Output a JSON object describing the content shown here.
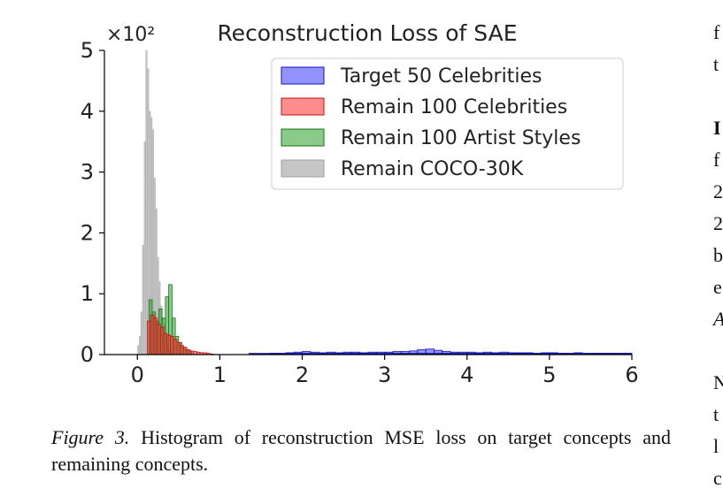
{
  "chart_data": {
    "type": "histogram",
    "title": "Reconstruction Loss of SAE",
    "xlabel": "",
    "ylabel": "",
    "y_multiplier": "×10²",
    "xlim": [
      -0.4,
      6
    ],
    "ylim": [
      0,
      5
    ],
    "x_ticks": [
      "0",
      "1",
      "2",
      "3",
      "4",
      "5",
      "6"
    ],
    "y_ticks": [
      "0",
      "1",
      "2",
      "3",
      "4",
      "5"
    ],
    "legend_position": "top-right",
    "series": [
      {
        "name": "Target 50 Celebrities",
        "color": "#3a3aff",
        "edge": "#1010c0",
        "bins": [
          [
            1.4,
            1.5,
            0.01
          ],
          [
            1.5,
            1.6,
            0.01
          ],
          [
            1.6,
            1.7,
            0.02
          ],
          [
            1.7,
            1.8,
            0.02
          ],
          [
            1.8,
            1.9,
            0.03
          ],
          [
            1.9,
            2.0,
            0.04
          ],
          [
            2.0,
            2.1,
            0.05
          ],
          [
            2.1,
            2.2,
            0.04
          ],
          [
            2.2,
            2.3,
            0.03
          ],
          [
            2.3,
            2.4,
            0.04
          ],
          [
            2.4,
            2.5,
            0.03
          ],
          [
            2.5,
            2.6,
            0.04
          ],
          [
            2.6,
            2.7,
            0.04
          ],
          [
            2.7,
            2.8,
            0.03
          ],
          [
            2.8,
            2.9,
            0.04
          ],
          [
            2.9,
            3.0,
            0.04
          ],
          [
            3.0,
            3.1,
            0.04
          ],
          [
            3.1,
            3.2,
            0.05
          ],
          [
            3.2,
            3.3,
            0.05
          ],
          [
            3.3,
            3.4,
            0.06
          ],
          [
            3.4,
            3.5,
            0.08
          ],
          [
            3.5,
            3.6,
            0.09
          ],
          [
            3.6,
            3.7,
            0.07
          ],
          [
            3.7,
            3.8,
            0.05
          ],
          [
            3.8,
            3.9,
            0.04
          ],
          [
            3.9,
            4.0,
            0.04
          ],
          [
            4.0,
            4.1,
            0.04
          ],
          [
            4.1,
            4.2,
            0.03
          ],
          [
            4.2,
            4.3,
            0.04
          ],
          [
            4.3,
            4.4,
            0.03
          ],
          [
            4.4,
            4.5,
            0.04
          ],
          [
            4.5,
            4.6,
            0.03
          ],
          [
            4.6,
            4.7,
            0.03
          ],
          [
            4.7,
            4.8,
            0.03
          ],
          [
            4.8,
            4.9,
            0.02
          ],
          [
            4.9,
            5.0,
            0.03
          ],
          [
            5.0,
            5.1,
            0.03
          ],
          [
            5.1,
            5.2,
            0.02
          ],
          [
            5.2,
            5.3,
            0.02
          ],
          [
            5.3,
            5.4,
            0.03
          ],
          [
            5.4,
            5.5,
            0.02
          ],
          [
            5.5,
            5.6,
            0.02
          ],
          [
            5.6,
            5.7,
            0.02
          ],
          [
            5.7,
            5.8,
            0.02
          ],
          [
            5.8,
            5.9,
            0.02
          ],
          [
            5.9,
            6.0,
            0.02
          ]
        ]
      },
      {
        "name": "Remain 100 Celebrities",
        "color": "#ff3030",
        "edge": "#c01010",
        "bins": [
          [
            0.12,
            0.16,
            0.55
          ],
          [
            0.16,
            0.2,
            0.65
          ],
          [
            0.2,
            0.24,
            0.6
          ],
          [
            0.24,
            0.28,
            0.5
          ],
          [
            0.28,
            0.32,
            0.45
          ],
          [
            0.32,
            0.36,
            0.35
          ],
          [
            0.36,
            0.4,
            0.32
          ],
          [
            0.4,
            0.44,
            0.3
          ],
          [
            0.44,
            0.48,
            0.25
          ],
          [
            0.48,
            0.52,
            0.2
          ],
          [
            0.52,
            0.56,
            0.15
          ],
          [
            0.56,
            0.6,
            0.12
          ],
          [
            0.6,
            0.64,
            0.08
          ],
          [
            0.64,
            0.68,
            0.06
          ],
          [
            0.68,
            0.72,
            0.05
          ],
          [
            0.72,
            0.76,
            0.04
          ],
          [
            0.76,
            0.8,
            0.03
          ],
          [
            0.8,
            0.84,
            0.03
          ],
          [
            0.84,
            0.88,
            0.02
          ],
          [
            0.88,
            0.92,
            0.01
          ]
        ]
      },
      {
        "name": "Remain 100 Artist Styles",
        "color": "#2aa02a",
        "edge": "#187018",
        "bins": [
          [
            0.14,
            0.18,
            0.9
          ],
          [
            0.18,
            0.22,
            0.7
          ],
          [
            0.22,
            0.26,
            0.55
          ],
          [
            0.26,
            0.3,
            0.75
          ],
          [
            0.3,
            0.34,
            0.6
          ],
          [
            0.34,
            0.38,
            0.95
          ],
          [
            0.38,
            0.42,
            1.15
          ],
          [
            0.42,
            0.46,
            0.6
          ],
          [
            0.46,
            0.5,
            0.3
          ],
          [
            0.5,
            0.54,
            0.2
          ],
          [
            0.54,
            0.58,
            0.12
          ],
          [
            0.58,
            0.62,
            0.08
          ],
          [
            0.62,
            0.66,
            0.05
          ]
        ]
      },
      {
        "name": "Remain COCO-30K",
        "color": "#a0a0a0",
        "edge": "#a0a0a0",
        "bins": [
          [
            0.0,
            0.02,
            0.15
          ],
          [
            0.02,
            0.04,
            0.3
          ],
          [
            0.04,
            0.06,
            0.7
          ],
          [
            0.06,
            0.08,
            1.8
          ],
          [
            0.08,
            0.1,
            3.5
          ],
          [
            0.1,
            0.12,
            5.0
          ],
          [
            0.12,
            0.14,
            4.7
          ],
          [
            0.14,
            0.16,
            4.0
          ],
          [
            0.16,
            0.18,
            3.9
          ],
          [
            0.18,
            0.2,
            3.7
          ],
          [
            0.2,
            0.22,
            2.9
          ],
          [
            0.22,
            0.24,
            2.4
          ],
          [
            0.24,
            0.26,
            1.6
          ],
          [
            0.26,
            0.28,
            1.2
          ],
          [
            0.28,
            0.3,
            0.8
          ],
          [
            0.3,
            0.32,
            0.6
          ],
          [
            0.32,
            0.34,
            0.5
          ],
          [
            0.34,
            0.36,
            0.3
          ],
          [
            0.36,
            0.38,
            0.2
          ],
          [
            0.38,
            0.4,
            0.1
          ],
          [
            0.4,
            0.42,
            0.06
          ],
          [
            0.42,
            0.44,
            0.04
          ]
        ]
      }
    ]
  },
  "caption": {
    "label": "Figure 3.",
    "text": "Histogram of reconstruction MSE loss on target concepts and remaining concepts."
  },
  "margin_letters": [
    "f",
    "t",
    "I",
    "f",
    "2",
    "2",
    "b",
    "e",
    "A",
    "N",
    "t",
    "l",
    "c"
  ]
}
